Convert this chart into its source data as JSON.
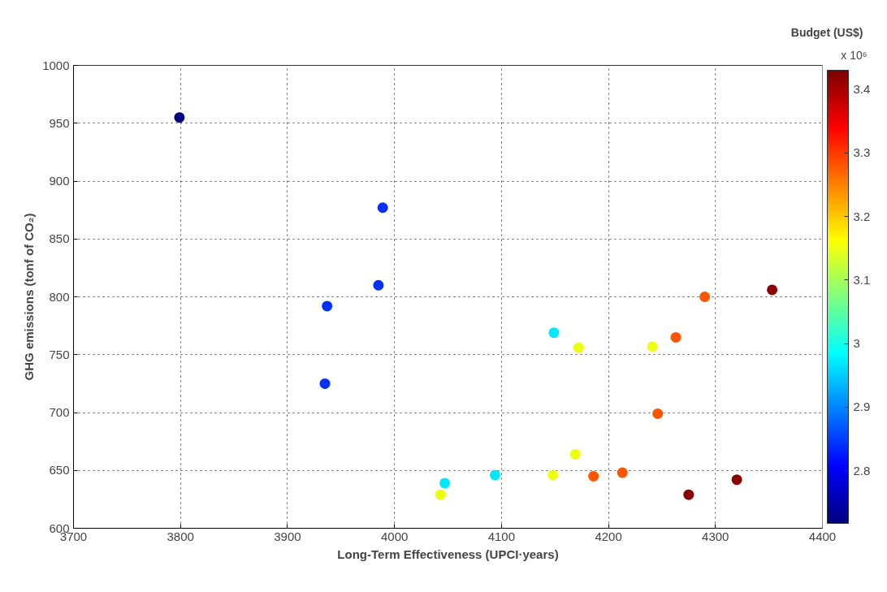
{
  "chart_data": {
    "type": "scatter",
    "xlabel": "Long-Term Effectiveness (UPCI·years)",
    "ylabel": "GHG emissions (tonf of CO₂)",
    "clabel": "Budget (US$)",
    "annotations": [
      "x 10⁶"
    ],
    "xlim": [
      3700,
      4400
    ],
    "xticks": [
      3700,
      3800,
      3900,
      4000,
      4100,
      4200,
      4300,
      4400
    ],
    "ylim": [
      600,
      1000
    ],
    "yticks": [
      600,
      650,
      700,
      750,
      800,
      850,
      900,
      950,
      1000
    ],
    "clim": [
      2.717,
      3.43
    ],
    "cticks": [
      2.8,
      2.9,
      3,
      3.1,
      3.2,
      3.3,
      3.4
    ],
    "grid": true,
    "marker": "circle",
    "x": [
      3799,
      3989,
      3985,
      3937,
      3935,
      4149,
      4172,
      4241,
      4263,
      4246,
      4169,
      4148,
      4186,
      4213,
      4275,
      4320,
      4047,
      4043,
      4094,
      4290,
      4353
    ],
    "values": [
      955,
      877,
      810,
      792,
      725,
      769,
      756,
      757,
      765,
      699,
      664,
      646,
      645,
      648,
      629,
      642,
      639,
      629,
      646,
      800,
      806
    ],
    "cvalues": [
      2.72,
      2.84,
      2.84,
      2.84,
      2.84,
      2.97,
      3.15,
      3.15,
      3.28,
      3.28,
      3.15,
      3.15,
      3.28,
      3.28,
      3.42,
      3.42,
      2.97,
      3.15,
      2.97,
      3.28,
      3.42
    ]
  }
}
